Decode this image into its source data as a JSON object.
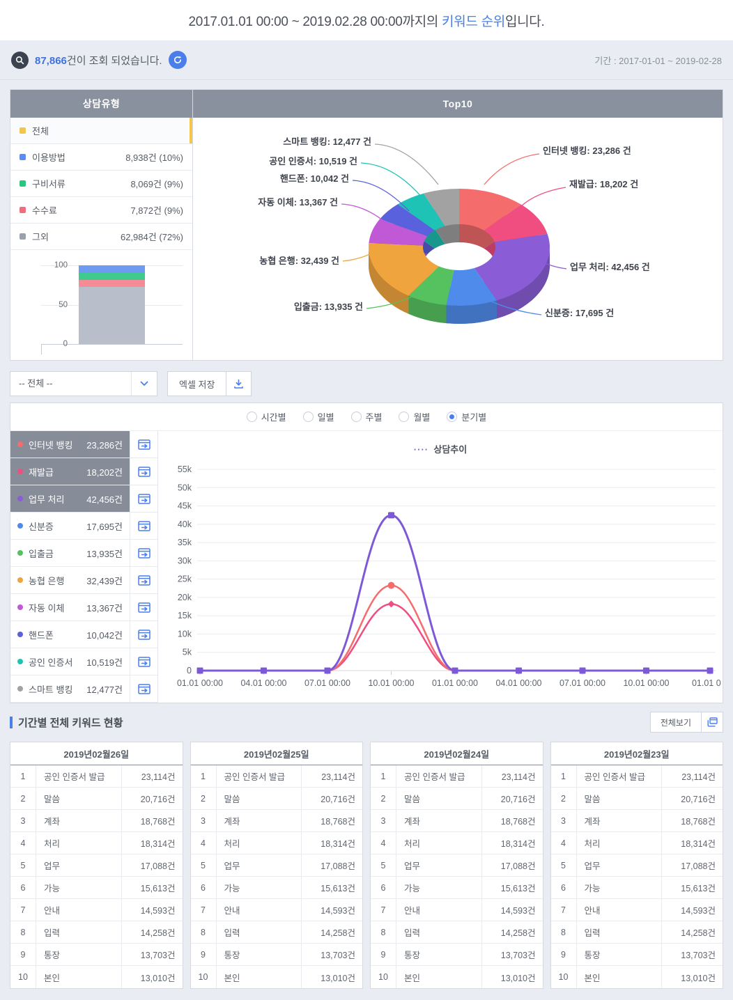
{
  "header": {
    "title_prefix": "2017.01.01 00:00 ~ 2019.02.28 00:00까지의 ",
    "title_accent": "키워드 순위",
    "title_suffix": "입니다."
  },
  "info_bar": {
    "count": "87,866",
    "count_suffix": "건이 조회 되었습니다.",
    "period": "기간 : 2017-01-01 ~ 2019-02-28"
  },
  "category_panel": {
    "title": "상담유형",
    "items": [
      {
        "label": "전체",
        "value": "",
        "color": "#f0c64f",
        "selected": true
      },
      {
        "label": "이용방법",
        "value": "8,938건 (10%)",
        "color": "#5e8bee",
        "selected": false
      },
      {
        "label": "구비서류",
        "value": "8,069건 (9%)",
        "color": "#2bc57e",
        "selected": false
      },
      {
        "label": "수수료",
        "value": "7,872건 (9%)",
        "color": "#f06d7d",
        "selected": false
      },
      {
        "label": "그외",
        "value": "62,984건 (72%)",
        "color": "#9ba1ac",
        "selected": false
      }
    ]
  },
  "top10_panel": {
    "title": "Top10"
  },
  "controls": {
    "dropdown_value": "-- 전체 --",
    "excel_button": "엑셀 저장"
  },
  "trend_panel": {
    "radios": [
      "시간별",
      "일별",
      "주별",
      "월별",
      "분기별"
    ],
    "selected_radio": "분기별",
    "chart_title": "상담추이",
    "legend": [
      {
        "label": "인터넷 뱅킹",
        "count": "23,286건",
        "color": "#f56c6c",
        "highlighted": true
      },
      {
        "label": "재발급",
        "count": "18,202건",
        "color": "#f04e81",
        "highlighted": true
      },
      {
        "label": "업무 처리",
        "count": "42,456건",
        "color": "#8a5dd6",
        "highlighted": true
      },
      {
        "label": "신분증",
        "count": "17,695건",
        "color": "#4f8bea",
        "highlighted": false
      },
      {
        "label": "입출금",
        "count": "13,935건",
        "color": "#55c15f",
        "highlighted": false
      },
      {
        "label": "농협 은행",
        "count": "32,439건",
        "color": "#f0a43e",
        "highlighted": false
      },
      {
        "label": "자동 이체",
        "count": "13,367건",
        "color": "#c158d6",
        "highlighted": false
      },
      {
        "label": "핸드폰",
        "count": "10,042건",
        "color": "#5a61dd",
        "highlighted": false
      },
      {
        "label": "공인 인증서",
        "count": "10,519건",
        "color": "#1fc3b5",
        "highlighted": false
      },
      {
        "label": "스마트 뱅킹",
        "count": "12,477건",
        "color": "#a2a2a2",
        "highlighted": false
      }
    ]
  },
  "keyword_section": {
    "title": "기간별 전체 키워드 현황",
    "view_all_button": "전체보기",
    "tables": [
      {
        "date": "2019년02월26일",
        "rows": [
          {
            "rank": "1",
            "keyword": "공인 인증서 발급",
            "count": "23,114건"
          },
          {
            "rank": "2",
            "keyword": "말씀",
            "count": "20,716건"
          },
          {
            "rank": "3",
            "keyword": "계좌",
            "count": "18,768건"
          },
          {
            "rank": "4",
            "keyword": "처리",
            "count": "18,314건"
          },
          {
            "rank": "5",
            "keyword": "업무",
            "count": "17,088건"
          },
          {
            "rank": "6",
            "keyword": "가능",
            "count": "15,613건"
          },
          {
            "rank": "7",
            "keyword": "안내",
            "count": "14,593건"
          },
          {
            "rank": "8",
            "keyword": "입력",
            "count": "14,258건"
          },
          {
            "rank": "9",
            "keyword": "통장",
            "count": "13,703건"
          },
          {
            "rank": "10",
            "keyword": "본인",
            "count": "13,010건"
          }
        ]
      },
      {
        "date": "2019년02월25일",
        "rows": [
          {
            "rank": "1",
            "keyword": "공인 인증서 발급",
            "count": "23,114건"
          },
          {
            "rank": "2",
            "keyword": "말씀",
            "count": "20,716건"
          },
          {
            "rank": "3",
            "keyword": "계좌",
            "count": "18,768건"
          },
          {
            "rank": "4",
            "keyword": "처리",
            "count": "18,314건"
          },
          {
            "rank": "5",
            "keyword": "업무",
            "count": "17,088건"
          },
          {
            "rank": "6",
            "keyword": "가능",
            "count": "15,613건"
          },
          {
            "rank": "7",
            "keyword": "안내",
            "count": "14,593건"
          },
          {
            "rank": "8",
            "keyword": "입력",
            "count": "14,258건"
          },
          {
            "rank": "9",
            "keyword": "통장",
            "count": "13,703건"
          },
          {
            "rank": "10",
            "keyword": "본인",
            "count": "13,010건"
          }
        ]
      },
      {
        "date": "2019년02월24일",
        "rows": [
          {
            "rank": "1",
            "keyword": "공인 인증서 발급",
            "count": "23,114건"
          },
          {
            "rank": "2",
            "keyword": "말씀",
            "count": "20,716건"
          },
          {
            "rank": "3",
            "keyword": "계좌",
            "count": "18,768건"
          },
          {
            "rank": "4",
            "keyword": "처리",
            "count": "18,314건"
          },
          {
            "rank": "5",
            "keyword": "업무",
            "count": "17,088건"
          },
          {
            "rank": "6",
            "keyword": "가능",
            "count": "15,613건"
          },
          {
            "rank": "7",
            "keyword": "안내",
            "count": "14,593건"
          },
          {
            "rank": "8",
            "keyword": "입력",
            "count": "14,258건"
          },
          {
            "rank": "9",
            "keyword": "통장",
            "count": "13,703건"
          },
          {
            "rank": "10",
            "keyword": "본인",
            "count": "13,010건"
          }
        ]
      },
      {
        "date": "2019년02월23일",
        "rows": [
          {
            "rank": "1",
            "keyword": "공인 인증서 발급",
            "count": "23,114건"
          },
          {
            "rank": "2",
            "keyword": "말씀",
            "count": "20,716건"
          },
          {
            "rank": "3",
            "keyword": "계좌",
            "count": "18,768건"
          },
          {
            "rank": "4",
            "keyword": "처리",
            "count": "18,314건"
          },
          {
            "rank": "5",
            "keyword": "업무",
            "count": "17,088건"
          },
          {
            "rank": "6",
            "keyword": "가능",
            "count": "15,613건"
          },
          {
            "rank": "7",
            "keyword": "안내",
            "count": "14,593건"
          },
          {
            "rank": "8",
            "keyword": "입력",
            "count": "14,258건"
          },
          {
            "rank": "9",
            "keyword": "통장",
            "count": "13,703건"
          },
          {
            "rank": "10",
            "keyword": "본인",
            "count": "13,010건"
          }
        ]
      }
    ]
  },
  "chart_data": [
    {
      "id": "top10_donut",
      "type": "pie",
      "title": "Top10",
      "unit": "건",
      "labels": [
        "인터넷 뱅킹",
        "재발급",
        "업무 처리",
        "신분증",
        "입출금",
        "농협 은행",
        "자동 이체",
        "핸드폰",
        "공인 인증서",
        "스마트 뱅킹"
      ],
      "values": [
        23286,
        18202,
        42456,
        17695,
        13935,
        32439,
        13367,
        10042,
        10519,
        12477
      ],
      "colors": [
        "#f56c6c",
        "#f04e81",
        "#8a5dd6",
        "#4f8bea",
        "#55c15f",
        "#f0a43e",
        "#c158d6",
        "#5a61dd",
        "#1fc3b5",
        "#a2a2a2"
      ]
    },
    {
      "id": "trend_line",
      "type": "line",
      "title": "상담추이",
      "legend_position": "top",
      "x": [
        "01.01 00:00",
        "04.01 00:00",
        "07.01 00:00",
        "10.01 00:00",
        "01.01 00:00",
        "04.01 00:00",
        "07.01 00:00",
        "10.01 00:00",
        "01.01 0..."
      ],
      "series": [
        {
          "name": "재발급",
          "color": "#f04e81",
          "marker": "diamond",
          "values": [
            0,
            0,
            0,
            18202,
            0,
            0,
            0,
            0,
            0
          ]
        },
        {
          "name": "인터넷 뱅킹",
          "color": "#f56c6c",
          "marker": "circle",
          "values": [
            0,
            0,
            0,
            23286,
            0,
            0,
            0,
            0,
            0
          ]
        },
        {
          "name": "업무 처리",
          "color": "#7d59d8",
          "marker": "square",
          "values": [
            0,
            0,
            0,
            42456,
            0,
            0,
            0,
            0,
            0
          ]
        }
      ],
      "ylim": [
        0,
        55000
      ],
      "ytick_step": 5000,
      "ytick_labels": [
        "0",
        "5k",
        "10k",
        "15k",
        "20k",
        "25k",
        "30k",
        "35k",
        "40k",
        "45k",
        "50k",
        "55k"
      ],
      "grid": true
    },
    {
      "id": "category_bar",
      "type": "bar",
      "stacked": true,
      "categories": [
        "상담유형"
      ],
      "order": "bottom-to-top",
      "ylim": [
        0,
        100
      ],
      "yticks": [
        "0",
        "50",
        "100"
      ],
      "series": [
        {
          "name": "그외",
          "value": 72,
          "color": "#b9bfca"
        },
        {
          "name": "수수료",
          "value": 9,
          "color": "#f58b96"
        },
        {
          "name": "구비서류",
          "value": 9,
          "color": "#3fcb8e"
        },
        {
          "name": "이용방법",
          "value": 10,
          "color": "#6d9bf2"
        }
      ]
    }
  ]
}
